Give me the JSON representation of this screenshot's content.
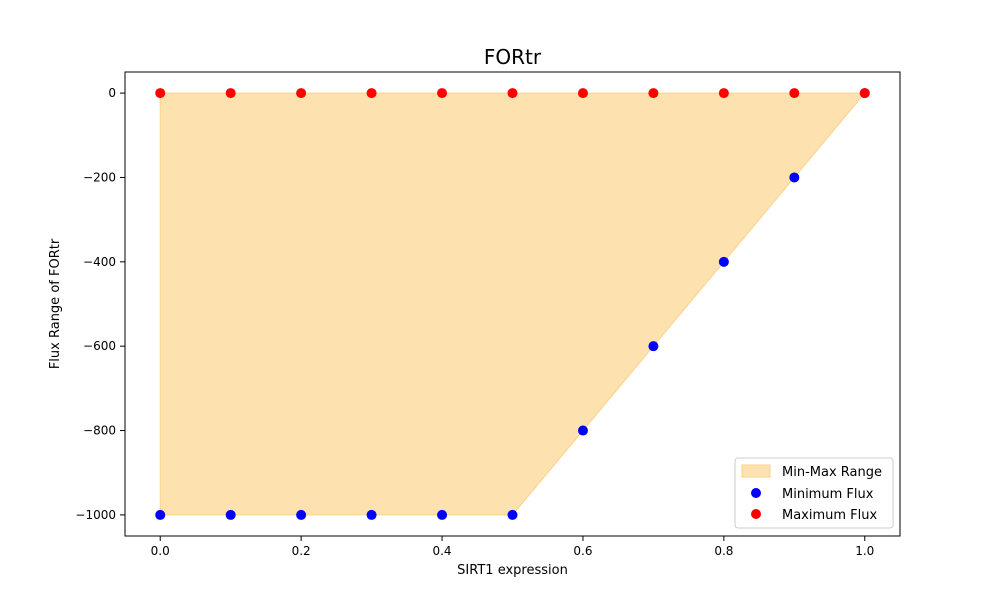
{
  "chart_data": {
    "type": "scatter",
    "title": "FORtr",
    "xlabel": "SIRT1 expression",
    "ylabel": "Flux Range of FORtr",
    "xlim": [
      -0.05,
      1.05
    ],
    "ylim": [
      -1050,
      50
    ],
    "x_ticks": [
      0.0,
      0.2,
      0.4,
      0.6,
      0.8,
      1.0
    ],
    "x_tick_labels": [
      "0.0",
      "0.2",
      "0.4",
      "0.6",
      "0.8",
      "1.0"
    ],
    "y_ticks": [
      0,
      -200,
      -400,
      -600,
      -800,
      -1000
    ],
    "y_tick_labels": [
      "0",
      "−200",
      "−400",
      "−600",
      "−800",
      "−1000"
    ],
    "grid": false,
    "legend_position": "lower-right",
    "x": [
      0.0,
      0.1,
      0.2,
      0.3,
      0.4,
      0.5,
      0.6,
      0.7,
      0.8,
      0.9,
      1.0
    ],
    "fill": {
      "name": "Min-Max Range",
      "color": "#fde2b0",
      "edge_color": "#fbd18a"
    },
    "series": [
      {
        "name": "Minimum Flux",
        "color": "#0000ff",
        "values": [
          -1000,
          -1000,
          -1000,
          -1000,
          -1000,
          -1000,
          -800,
          -600,
          -400,
          -200,
          0
        ]
      },
      {
        "name": "Maximum Flux",
        "color": "#ff0000",
        "values": [
          0,
          0,
          0,
          0,
          0,
          0,
          0,
          0,
          0,
          0,
          0
        ]
      }
    ]
  }
}
